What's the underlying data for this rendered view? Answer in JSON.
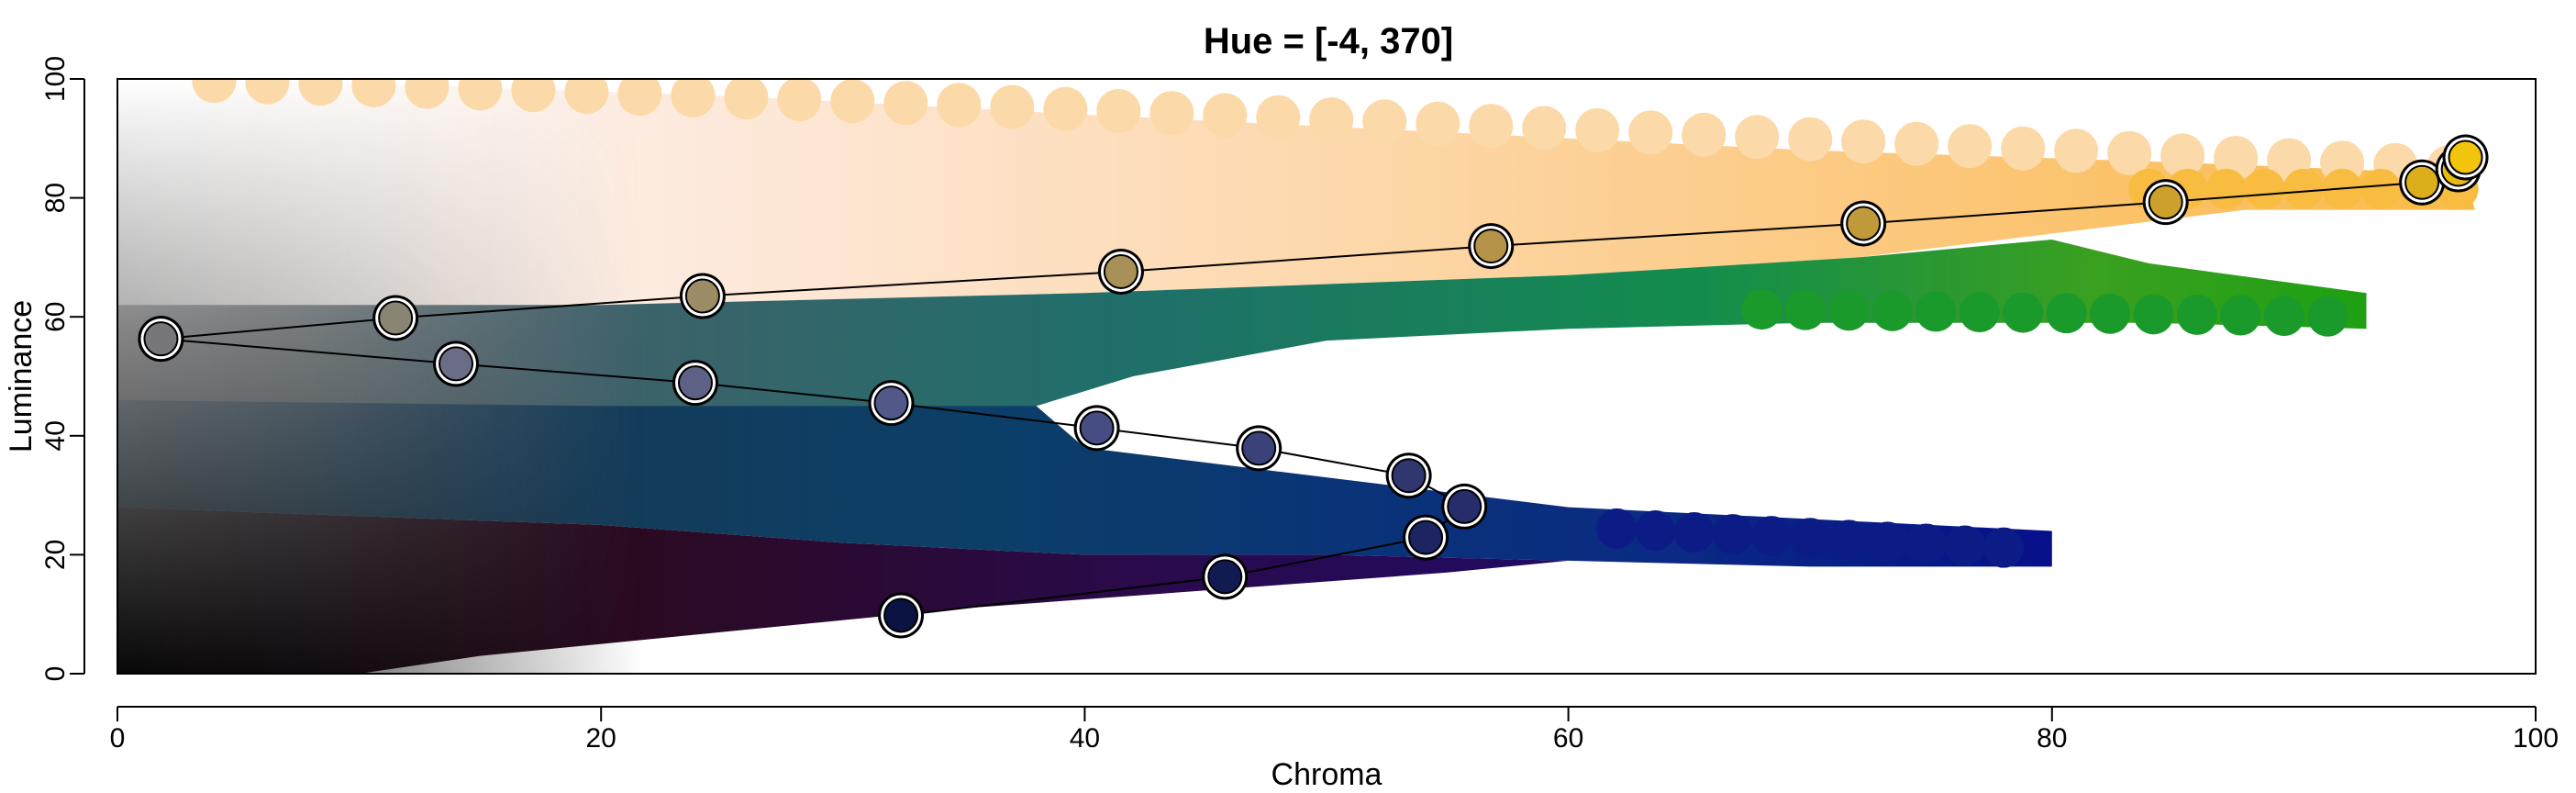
{
  "chart_data": {
    "type": "scatter",
    "title": "Hue = [-4, 370]",
    "xlabel": "Chroma",
    "ylabel": "Luminance",
    "xlim": [
      0,
      100
    ],
    "ylim": [
      0,
      100
    ],
    "x_ticks": [
      "0",
      "20",
      "40",
      "60",
      "80",
      "100"
    ],
    "y_ticks": [
      "0",
      "20",
      "40",
      "60",
      "80",
      "100"
    ],
    "grid": false,
    "legend": "none",
    "series": [
      {
        "points": [
          {
            "x": 1.8,
            "y": 56.3,
            "color": "#77777b"
          },
          {
            "x": 11.5,
            "y": 59.8,
            "color": "#8a8572"
          },
          {
            "x": 24.2,
            "y": 63.5,
            "color": "#9c8c66"
          },
          {
            "x": 41.5,
            "y": 67.6,
            "color": "#a89058"
          },
          {
            "x": 56.8,
            "y": 71.9,
            "color": "#b49348"
          },
          {
            "x": 72.2,
            "y": 75.7,
            "color": "#c0993a"
          },
          {
            "x": 84.7,
            "y": 79.3,
            "color": "#cca02c"
          },
          {
            "x": 95.3,
            "y": 82.6,
            "color": "#dcae1c"
          },
          {
            "x": 96.8,
            "y": 84.8,
            "color": "#e9bb12"
          },
          {
            "x": 97.1,
            "y": 86.8,
            "color": "#f3c40c"
          }
        ]
      },
      {
        "points": [
          {
            "x": 1.8,
            "y": 56.3,
            "color": "#77777b"
          },
          {
            "x": 14.0,
            "y": 52.1,
            "color": "#6b6c85"
          },
          {
            "x": 23.9,
            "y": 48.9,
            "color": "#5d6185"
          },
          {
            "x": 32.0,
            "y": 45.5,
            "color": "#525887"
          },
          {
            "x": 40.5,
            "y": 41.3,
            "color": "#454d82"
          },
          {
            "x": 47.2,
            "y": 37.9,
            "color": "#3b427a"
          },
          {
            "x": 53.4,
            "y": 33.3,
            "color": "#30376f"
          },
          {
            "x": 55.7,
            "y": 28.1,
            "color": "#272d6b"
          },
          {
            "x": 54.1,
            "y": 22.9,
            "color": "#1d2462"
          },
          {
            "x": 45.8,
            "y": 16.3,
            "color": "#121a52"
          },
          {
            "x": 32.4,
            "y": 9.8,
            "color": "#0b1342"
          }
        ]
      }
    ]
  }
}
